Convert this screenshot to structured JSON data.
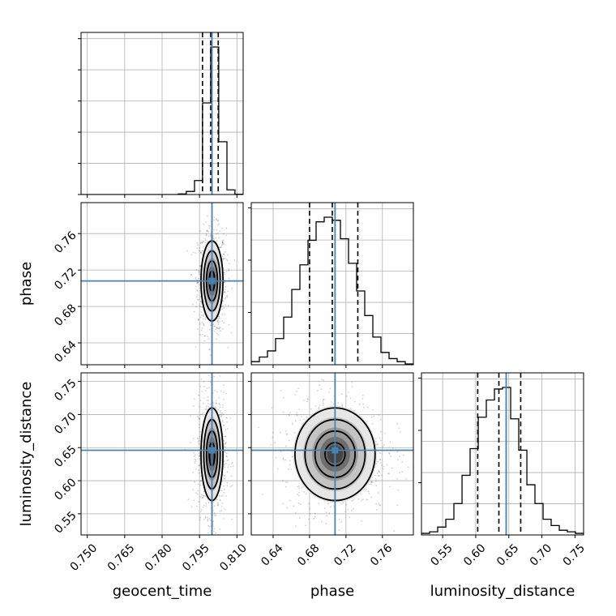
{
  "chart_data": {
    "type": "corner",
    "parameters": [
      "geocent_time",
      "phase",
      "luminosity_distance"
    ],
    "xlabels": [
      "geocent_time",
      "phase",
      "luminosity_distance"
    ],
    "ylabels": [
      "",
      "phase",
      "luminosity_distance"
    ],
    "truths": {
      "geocent_time": 0.8,
      "phase": 0.708,
      "luminosity_distance": 0.646
    },
    "truth_color": "#4682b4",
    "ranges": {
      "geocent_time": [
        0.7475,
        0.8125
      ],
      "phase": [
        0.616,
        0.794
      ],
      "luminosity_distance": [
        0.518,
        0.763
      ]
    },
    "ticks": {
      "geocent_time": [
        "0.750",
        "0.765",
        "0.780",
        "0.795",
        "0.810"
      ],
      "phase": [
        "0.64",
        "0.68",
        "0.72",
        "0.76"
      ],
      "luminosity_distance": [
        "0.55",
        "0.60",
        "0.65",
        "0.70",
        "0.75"
      ]
    },
    "quantiles": {
      "geocent_time": [
        0.7962,
        0.7995,
        0.8025
      ],
      "phase": [
        0.68,
        0.705,
        0.733
      ],
      "luminosity_distance": [
        0.603,
        0.635,
        0.668
      ]
    },
    "histograms": {
      "geocent_time": {
        "edges": [
          0.7475,
          0.7507,
          0.754,
          0.7572,
          0.7605,
          0.7637,
          0.767,
          0.7702,
          0.7735,
          0.7767,
          0.78,
          0.7832,
          0.7865,
          0.7897,
          0.793,
          0.7962,
          0.7995,
          0.8027,
          0.806,
          0.8092,
          0.8125
        ],
        "counts": [
          0,
          0,
          0,
          0,
          0,
          0,
          0,
          0,
          0,
          0,
          0,
          0,
          0.004,
          0.02,
          0.09,
          0.59,
          0.95,
          0.34,
          0.03,
          0.002
        ]
      },
      "phase": {
        "edges": [
          0.616,
          0.6249,
          0.6338,
          0.6427,
          0.6516,
          0.6605,
          0.6694,
          0.6783,
          0.6872,
          0.6961,
          0.705,
          0.7139,
          0.7228,
          0.7317,
          0.7406,
          0.7495,
          0.7584,
          0.7673,
          0.7762,
          0.7851,
          0.794
        ],
        "counts": [
          0.02,
          0.05,
          0.09,
          0.17,
          0.31,
          0.49,
          0.65,
          0.81,
          0.93,
          0.96,
          0.94,
          0.82,
          0.66,
          0.48,
          0.32,
          0.18,
          0.08,
          0.04,
          0.02,
          0.005
        ]
      },
      "luminosity_distance": {
        "edges": [
          0.518,
          0.5303,
          0.5425,
          0.5548,
          0.567,
          0.5793,
          0.5915,
          0.6038,
          0.616,
          0.6283,
          0.6405,
          0.6528,
          0.665,
          0.6773,
          0.6895,
          0.7018,
          0.714,
          0.7263,
          0.7385,
          0.7508,
          0.763
        ],
        "counts": [
          0.01,
          0.02,
          0.05,
          0.1,
          0.2,
          0.38,
          0.55,
          0.75,
          0.86,
          0.93,
          0.94,
          0.74,
          0.54,
          0.32,
          0.2,
          0.1,
          0.06,
          0.03,
          0.02,
          0.01
        ]
      }
    },
    "joint": {
      "geocent_time|phase": {
        "mean": [
          0.8,
          0.708
        ],
        "sigma": [
          0.0022,
          0.022
        ]
      },
      "geocent_time|luminosity_distance": {
        "mean": [
          0.8,
          0.64
        ],
        "sigma": [
          0.0022,
          0.035
        ]
      },
      "phase|luminosity_distance": {
        "mean": [
          0.708,
          0.64
        ],
        "sigma": [
          0.022,
          0.035
        ]
      }
    },
    "contour_levels_sigma": [
      0.5,
      1.0,
      1.5,
      2.0
    ],
    "grid": true
  }
}
